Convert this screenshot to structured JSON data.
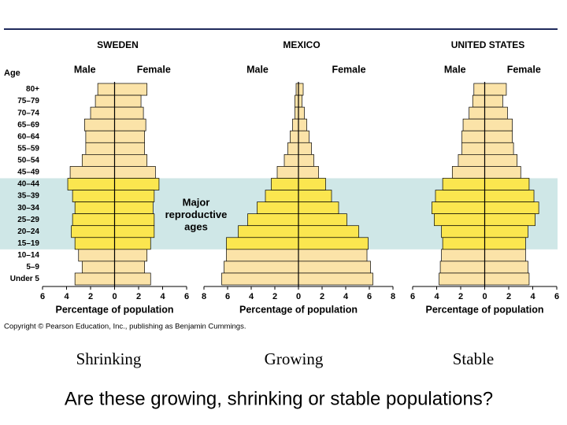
{
  "chart_data": [
    {
      "type": "pyramid",
      "title": "SWEDEN",
      "age_label": "Age",
      "xlabel": "Percentage of population",
      "categories": [
        "80+",
        "75–79",
        "70–74",
        "65–69",
        "60–64",
        "55–59",
        "50–54",
        "45–49",
        "40–44",
        "35–39",
        "30–34",
        "25–29",
        "20–24",
        "15–19",
        "10–14",
        "5–9",
        "Under 5"
      ],
      "series": [
        {
          "name": "Male",
          "color": "#fbe3a8",
          "values": [
            -1.4,
            -1.6,
            -2.0,
            -2.5,
            -2.4,
            -2.4,
            -2.7,
            -3.7,
            -3.9,
            -3.5,
            -3.3,
            -3.5,
            -3.6,
            -3.3,
            -3.0,
            -2.7,
            -3.3
          ]
        },
        {
          "name": "Female",
          "color": "#fbe3a8",
          "values": [
            2.7,
            2.2,
            2.4,
            2.6,
            2.5,
            2.5,
            2.7,
            3.4,
            3.7,
            3.3,
            3.2,
            3.3,
            3.3,
            3.0,
            2.7,
            2.5,
            3.0
          ]
        }
      ],
      "xlim": [
        -6,
        6
      ],
      "xticks": [
        {
          "value": -6,
          "label": "6"
        },
        {
          "value": -4,
          "label": "4"
        },
        {
          "value": -2,
          "label": "2"
        },
        0,
        2,
        4,
        6
      ]
    },
    {
      "type": "pyramid",
      "title": "MEXICO",
      "xlabel": "Percentage of population",
      "series": [
        {
          "name": "Male",
          "color": "#fbe3a8",
          "values": [
            -0.2,
            -0.3,
            -0.3,
            -0.5,
            -0.7,
            -0.9,
            -1.2,
            -1.8,
            -2.3,
            -2.8,
            -3.5,
            -4.3,
            -5.1,
            -6.1,
            -6.1,
            -6.3,
            -6.5
          ]
        },
        {
          "name": "Female",
          "color": "#fbe3a8",
          "values": [
            0.4,
            0.3,
            0.5,
            0.7,
            0.9,
            1.1,
            1.3,
            1.7,
            2.3,
            2.8,
            3.4,
            4.1,
            5.1,
            5.9,
            5.8,
            6.1,
            6.3
          ]
        }
      ],
      "xlim": [
        -8,
        8
      ],
      "xticks": [
        {
          "value": -8,
          "label": "8"
        },
        {
          "value": -6,
          "label": "6"
        },
        {
          "value": -4,
          "label": "4"
        },
        {
          "value": -2,
          "label": "2"
        },
        0,
        2,
        4,
        6,
        8
      ]
    },
    {
      "type": "pyramid",
      "title": "UNITED STATES",
      "xlabel": "Percentage of population",
      "series": [
        {
          "name": "Male",
          "color": "#fbe3a8",
          "values": [
            -0.9,
            -1.0,
            -1.3,
            -1.8,
            -1.9,
            -1.9,
            -2.2,
            -2.7,
            -3.5,
            -4.1,
            -4.4,
            -4.2,
            -3.6,
            -3.5,
            -3.6,
            -3.7,
            -3.8
          ]
        },
        {
          "name": "Female",
          "color": "#fbe3a8",
          "values": [
            1.8,
            1.5,
            1.9,
            2.3,
            2.3,
            2.4,
            2.7,
            3.0,
            3.7,
            4.1,
            4.5,
            4.2,
            3.6,
            3.4,
            3.4,
            3.6,
            3.7
          ]
        }
      ],
      "xlim": [
        -6,
        6
      ],
      "xticks": [
        {
          "value": -6,
          "label": "6"
        },
        {
          "value": -4,
          "label": "4"
        },
        {
          "value": -2,
          "label": "2"
        },
        0,
        2,
        4,
        6
      ]
    }
  ],
  "highlight": {
    "lines": [
      "Major",
      "reproductive",
      "ages"
    ],
    "color": "#cfe7e7",
    "bar_color": "#fbe64f"
  },
  "copyright": "Copyright © Pearson Education, Inc., publishing as Benjamin Cummings.",
  "captions": [
    "Shrinking",
    "Growing",
    "Stable"
  ],
  "question": "Are these growing, shrinking or stable populations?"
}
